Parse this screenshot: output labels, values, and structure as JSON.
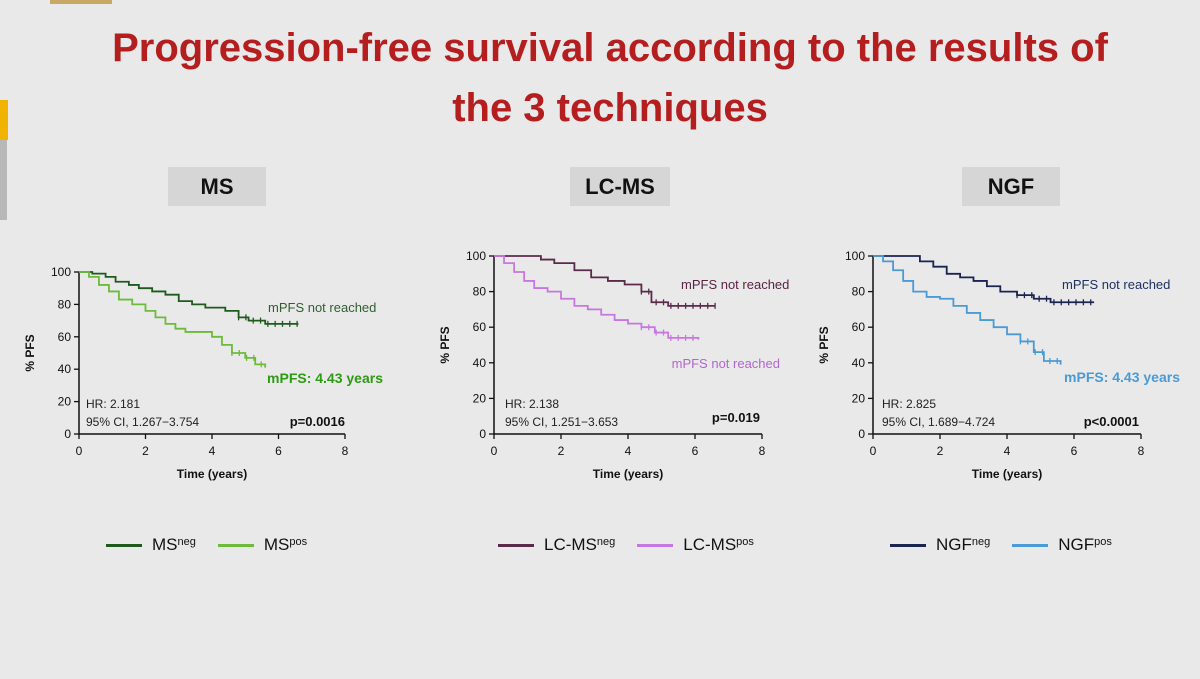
{
  "title": {
    "line1": "Progression-free survival according to the results of",
    "line2": "the 3 techniques"
  },
  "chart_data": [
    {
      "type": "line",
      "panel_label": "MS",
      "xlabel": "Time (years)",
      "ylabel": "% PFS",
      "xlim": [
        0,
        8
      ],
      "ylim": [
        0,
        100
      ],
      "xticks": [
        "0",
        "2",
        "4",
        "6",
        "8"
      ],
      "yticks": [
        "0",
        "20",
        "40",
        "60",
        "80",
        "100"
      ],
      "series": [
        {
          "name_base": "MS",
          "name_sup": "neg",
          "color": "#1e5a1e",
          "x": [
            0,
            0.4,
            0.8,
            1.1,
            1.5,
            1.8,
            2.2,
            2.6,
            3.0,
            3.4,
            3.8,
            4.4,
            4.8,
            5.1,
            5.6,
            6.6
          ],
          "y": [
            100,
            99,
            97,
            94,
            92,
            90,
            88,
            86,
            82,
            80,
            78,
            76,
            72,
            70,
            68,
            68
          ]
        },
        {
          "name_base": "MS",
          "name_sup": "pos",
          "color": "#6dbb3a",
          "x": [
            0,
            0.3,
            0.6,
            0.9,
            1.2,
            1.6,
            2.0,
            2.3,
            2.6,
            2.9,
            3.2,
            3.6,
            4.0,
            4.3,
            4.6,
            5.0,
            5.3,
            5.6
          ],
          "y": [
            100,
            97,
            92,
            88,
            83,
            80,
            76,
            72,
            68,
            65,
            63,
            63,
            60,
            55,
            50,
            47,
            43,
            41
          ]
        }
      ],
      "annotations": [
        {
          "text": "mPFS not reached",
          "color": "#2f5f2f",
          "bold": false
        },
        {
          "text": "mPFS: 4.43 years",
          "color": "#2e9b14",
          "bold": true
        }
      ],
      "hr_text": "HR: 2.181",
      "ci_text": "95% CI, 1.267−3.754",
      "p_text": "p=0.0016"
    },
    {
      "type": "line",
      "panel_label": "LC-MS",
      "xlabel": "Time (years)",
      "ylabel": "% PFS",
      "xlim": [
        0,
        8
      ],
      "ylim": [
        0,
        100
      ],
      "xticks": [
        "0",
        "2",
        "4",
        "6",
        "8"
      ],
      "yticks": [
        "0",
        "20",
        "40",
        "60",
        "80",
        "100"
      ],
      "series": [
        {
          "name_base": "LC-MS",
          "name_sup": "neg",
          "color": "#5a2a4a",
          "x": [
            0,
            0.8,
            1.4,
            1.8,
            2.4,
            2.9,
            3.4,
            3.9,
            4.4,
            4.7,
            5.2,
            6.6
          ],
          "y": [
            100,
            100,
            98,
            96,
            92,
            88,
            86,
            84,
            80,
            74,
            72,
            72
          ]
        },
        {
          "name_base": "LC-MS",
          "name_sup": "pos",
          "color": "#c778e0",
          "x": [
            0,
            0.3,
            0.6,
            0.9,
            1.2,
            1.6,
            2.0,
            2.4,
            2.8,
            3.2,
            3.6,
            4.0,
            4.4,
            4.8,
            5.2,
            6.1
          ],
          "y": [
            100,
            96,
            91,
            86,
            82,
            80,
            76,
            72,
            70,
            67,
            64,
            62,
            60,
            57,
            54,
            53
          ]
        }
      ],
      "annotations": [
        {
          "text": "mPFS not reached",
          "color": "#5a2244",
          "bold": false
        },
        {
          "text": "mPFS not reached",
          "color": "#b266cc",
          "bold": false
        }
      ],
      "hr_text": "HR: 2.138",
      "ci_text": "95% CI, 1.251−3.653",
      "p_text": "p=0.019"
    },
    {
      "type": "line",
      "panel_label": "NGF",
      "xlabel": "Time (years)",
      "ylabel": "% PFS",
      "xlim": [
        0,
        8
      ],
      "ylim": [
        0,
        100
      ],
      "xticks": [
        "0",
        "2",
        "4",
        "6",
        "8"
      ],
      "yticks": [
        "0",
        "20",
        "40",
        "60",
        "80",
        "100"
      ],
      "series": [
        {
          "name_base": "NGF",
          "name_sup": "neg",
          "color": "#1a2450",
          "x": [
            0,
            1.0,
            1.4,
            1.8,
            2.2,
            2.6,
            3.0,
            3.4,
            3.8,
            4.3,
            4.8,
            5.3,
            6.6
          ],
          "y": [
            100,
            100,
            97,
            94,
            90,
            88,
            86,
            83,
            80,
            78,
            76,
            74,
            74
          ]
        },
        {
          "name_base": "NGF",
          "name_sup": "pos",
          "color": "#4a9ad6",
          "x": [
            0,
            0.3,
            0.6,
            0.9,
            1.2,
            1.6,
            2.0,
            2.4,
            2.8,
            3.2,
            3.6,
            4.0,
            4.4,
            4.8,
            5.1,
            5.6
          ],
          "y": [
            100,
            97,
            92,
            86,
            80,
            77,
            76,
            72,
            68,
            64,
            60,
            56,
            52,
            46,
            41,
            39
          ]
        }
      ],
      "annotations": [
        {
          "text": "mPFS not reached",
          "color": "#1e3060",
          "bold": false
        },
        {
          "text": "mPFS: 4.43 years",
          "color": "#4a9ad6",
          "bold": true
        }
      ],
      "hr_text": "HR: 2.825",
      "ci_text": "95% CI, 1.689−4.724",
      "p_text": "p<0.0001"
    }
  ]
}
